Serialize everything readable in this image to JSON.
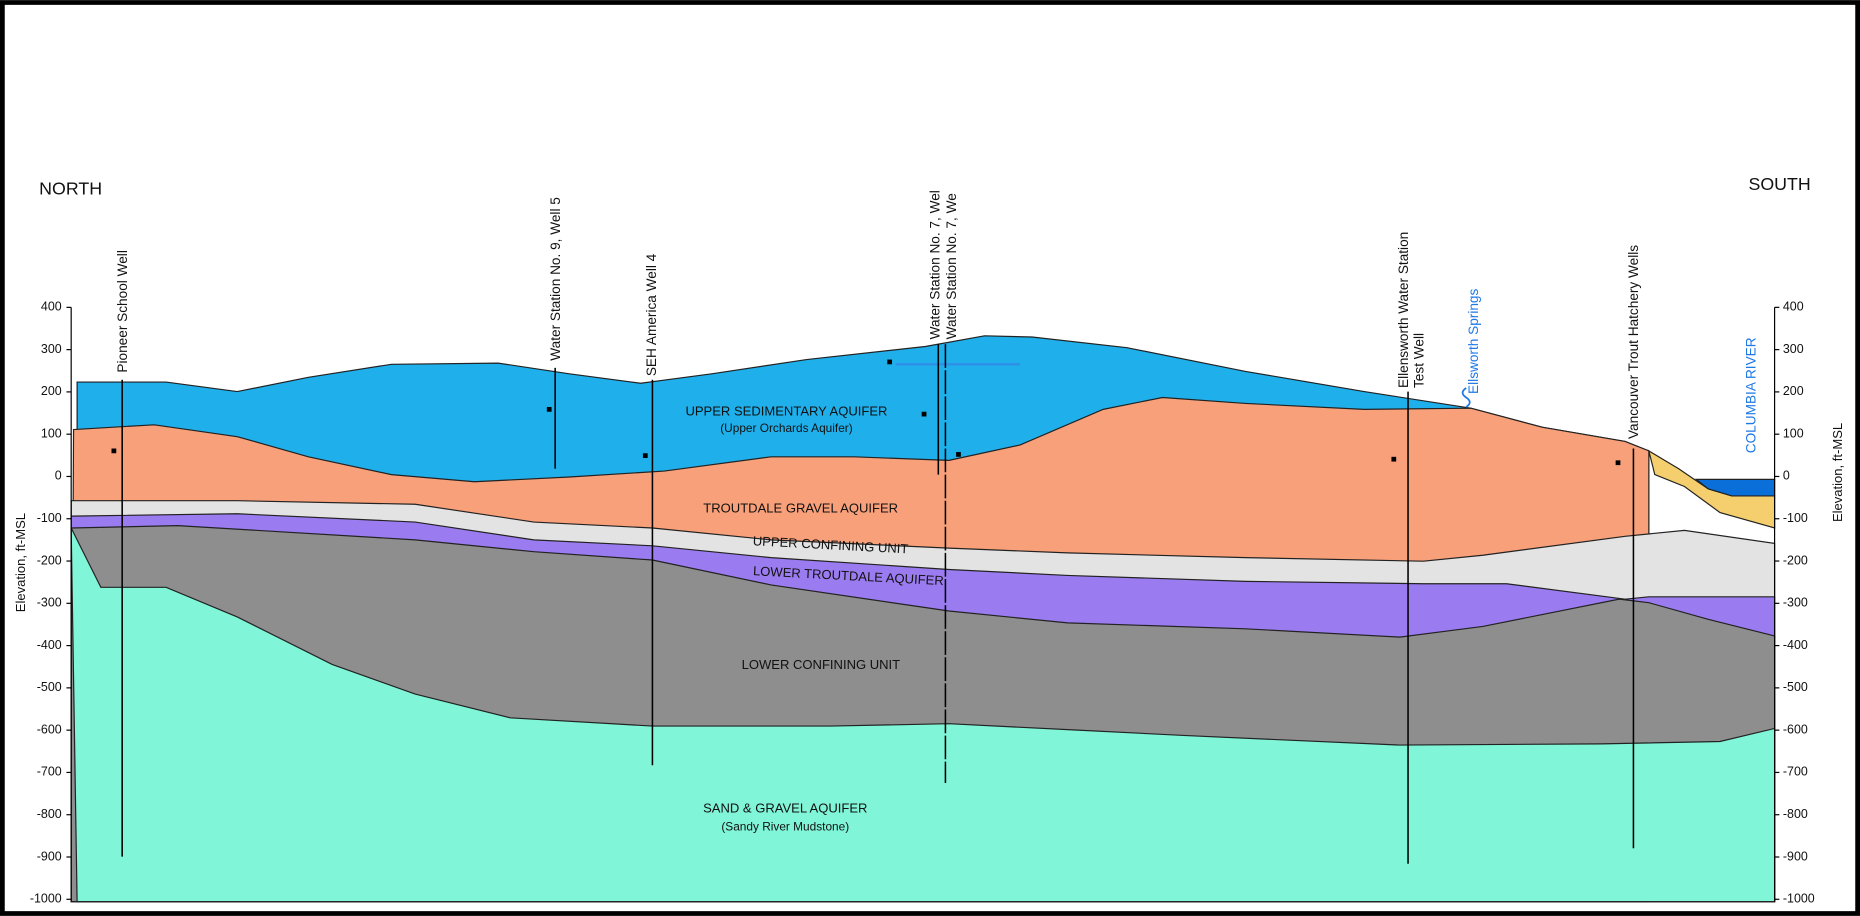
{
  "directions": {
    "left": "NORTH",
    "right": "SOUTH"
  },
  "axis": {
    "label": "Elevation, ft-MSL",
    "ticks": [
      400,
      300,
      200,
      100,
      0,
      -100,
      -200,
      -300,
      -400,
      -500,
      -600,
      -700,
      -800,
      -900,
      -1000
    ]
  },
  "wells": [
    {
      "label": "Pioneer School Well"
    },
    {
      "label": "Water Station No. 9, Well 5"
    },
    {
      "label": "SEH America Well 4"
    },
    {
      "label": "Water Station No. 7, Wel"
    },
    {
      "label": "Water Station No. 7, We"
    },
    {
      "label": [
        "Ellensworth Water Station",
        "Test Well"
      ]
    },
    {
      "label": "Vancouver Trout Hatchery Wells"
    }
  ],
  "features": {
    "spring": "Ellsworth Springs",
    "river": "COLUMBIA RIVER"
  },
  "layers": [
    {
      "name": "UPPER SEDIMENTARY AQUIFER",
      "subtitle": "(Upper Orchards Aquifer)"
    },
    {
      "name": "TROUTDALE GRAVEL AQUIFER"
    },
    {
      "name": "UPPER CONFINING UNIT"
    },
    {
      "name": "LOWER TROUTDALE AQUIFER"
    },
    {
      "name": "LOWER CONFINING UNIT"
    },
    {
      "name": "SAND & GRAVEL AQUIFER",
      "subtitle": "(Sandy River Mudstone)"
    }
  ]
}
